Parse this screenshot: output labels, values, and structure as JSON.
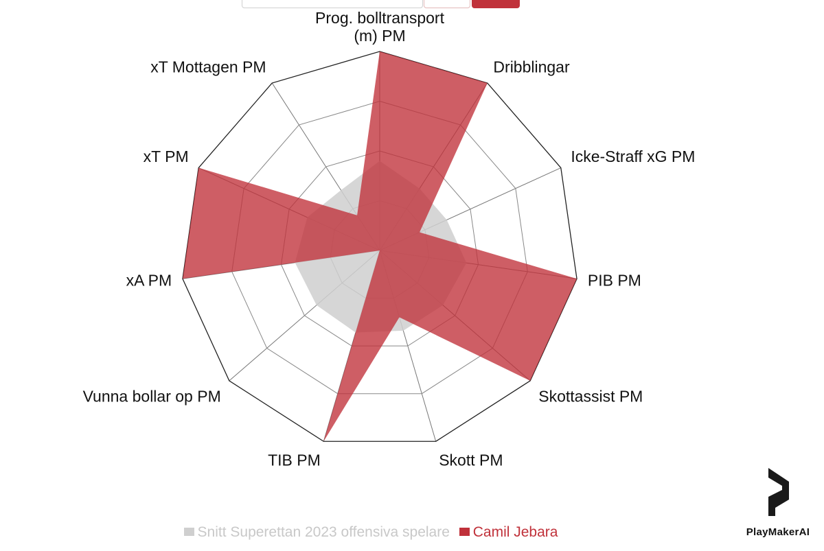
{
  "chart_data": {
    "type": "radar",
    "axes": [
      "Prog. bolltransport (m) PM",
      "Dribblingar",
      "Icke-Straff xG PM",
      "PIB PM",
      "Skottassist PM",
      "Skott PM",
      "TIB PM",
      "Vunna bollar op PM",
      "xA PM",
      "xT PM",
      "xT Mottagen PM"
    ],
    "axis_label_lines": [
      [
        "Prog. bolltransport",
        "(m) PM"
      ],
      [
        "Dribblingar"
      ],
      [
        "Icke-Straff xG PM"
      ],
      [
        "PIB PM"
      ],
      [
        "Skottassist PM"
      ],
      [
        "Skott PM"
      ],
      [
        "TIB PM"
      ],
      [
        "Vunna bollar op PM"
      ],
      [
        "xA PM"
      ],
      [
        "xT PM"
      ],
      [
        "xT Mottagen PM"
      ]
    ],
    "range": [
      0,
      1
    ],
    "rings": 4,
    "series": [
      {
        "name": "Snitt Superettan 2023 offensiva spelare",
        "color": "#cfcfcf",
        "values": [
          0.45,
          0.37,
          0.37,
          0.44,
          0.42,
          0.42,
          0.43,
          0.42,
          0.43,
          0.4,
          0.36
        ]
      },
      {
        "name": "Camil Jebara",
        "color": "#c0313a",
        "values": [
          1.0,
          1.0,
          0.22,
          1.0,
          1.0,
          0.35,
          1.0,
          0.0,
          1.0,
          1.0,
          0.21
        ]
      }
    ]
  },
  "legend": {
    "avg_label": "Snitt Superettan 2023 offensiva spelare",
    "player_label": "Camil Jebara"
  },
  "brand": {
    "name": "PlayMakerAI",
    "logo_icon": "playmaker-logo-icon"
  }
}
